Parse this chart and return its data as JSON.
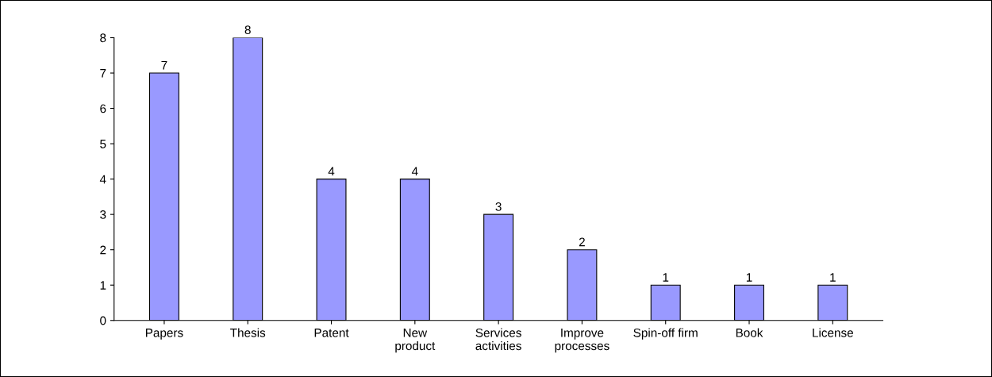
{
  "chart_data": {
    "type": "bar",
    "categories": [
      "Papers",
      "Thesis",
      "Patent",
      "New\nproduct",
      "Services\nactivities",
      "Improve\nprocesses",
      "Spin-off firm",
      "Book",
      "License"
    ],
    "values": [
      7,
      8,
      4,
      4,
      3,
      2,
      1,
      1,
      1
    ],
    "color": "#9999ff",
    "ylim": [
      0,
      8
    ],
    "yticks": [
      0,
      1,
      2,
      3,
      4,
      5,
      6,
      7,
      8
    ],
    "data_labels": true,
    "grid": false,
    "legend": false
  }
}
